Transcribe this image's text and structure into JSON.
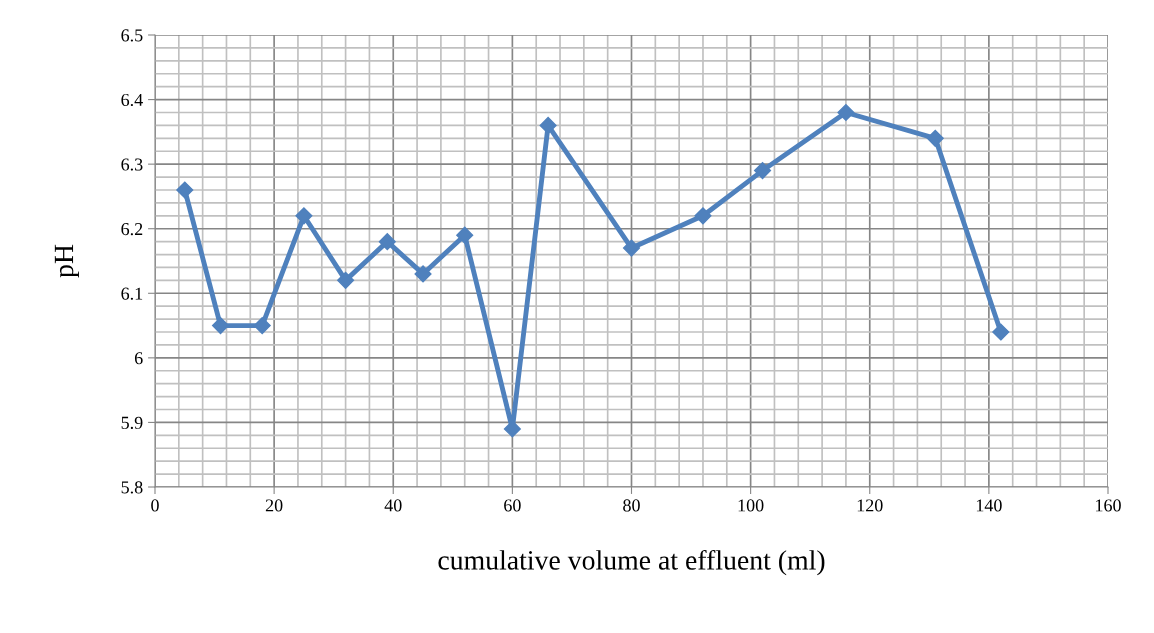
{
  "chart_data": {
    "type": "line",
    "xlabel": "cumulative volume at effluent (ml)",
    "ylabel": "pH",
    "x": [
      5,
      11,
      18,
      25,
      32,
      39,
      45,
      52,
      60,
      66,
      80,
      92,
      102,
      116,
      131,
      142
    ],
    "series": [
      {
        "color": "#4f81bd",
        "values": [
          6.26,
          6.05,
          6.05,
          6.22,
          6.12,
          6.18,
          6.13,
          6.19,
          5.89,
          6.36,
          6.17,
          6.22,
          6.29,
          6.38,
          6.34,
          6.04
        ]
      }
    ],
    "xlim": [
      0,
      160
    ],
    "xticks": [
      0,
      20,
      40,
      60,
      80,
      100,
      120,
      140,
      160
    ],
    "ylim": [
      5.8,
      6.5
    ],
    "yticks": [
      5.8,
      5.9,
      {
        "value": 6.0,
        "label": "6"
      },
      6.1,
      6.2,
      6.3,
      6.4,
      6.5
    ],
    "grid": true,
    "marker": "diamond",
    "line_style": "solid"
  }
}
